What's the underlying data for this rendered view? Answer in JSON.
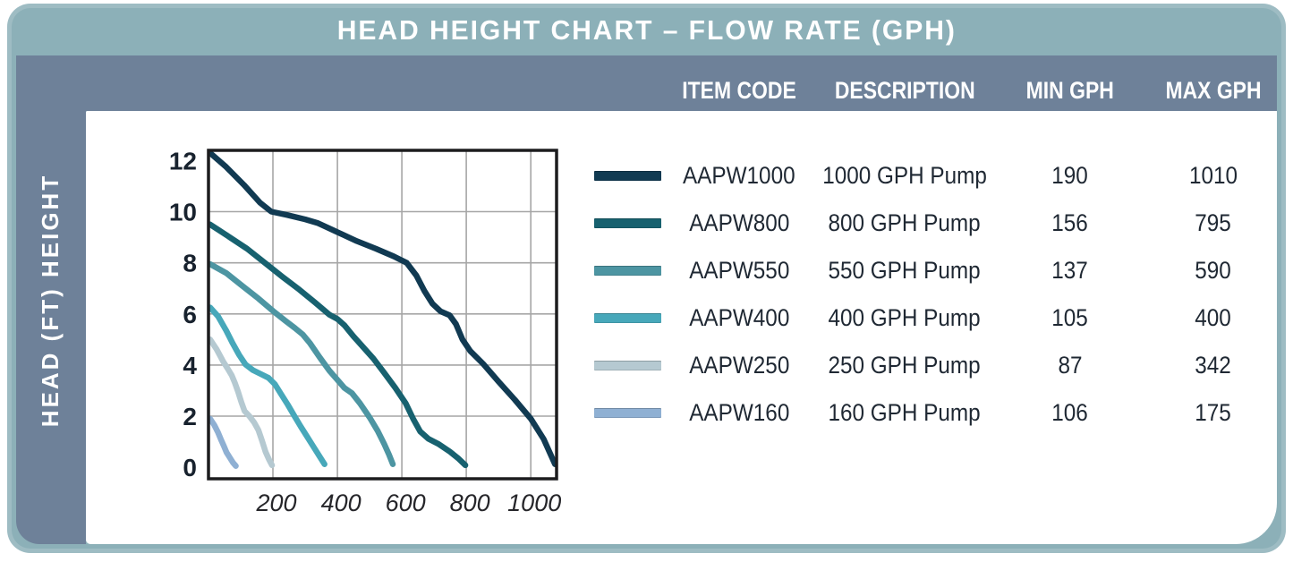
{
  "title": "HEAD HEIGHT CHART – FLOW RATE (GPH)",
  "y_axis_label": "HEAD (FT) HEIGHT",
  "colors": {
    "frame": "#8cb0b8",
    "band": "#6e8199",
    "panel": "#ffffff",
    "title_text": "#ffffff",
    "grid": "#a6a6a6",
    "plot_border": "#1c1c1e"
  },
  "table": {
    "headers": [
      "ITEM CODE",
      "DESCRIPTION",
      "MIN GPH",
      "MAX GPH"
    ],
    "rows": [
      {
        "item_code": "AAPW1000",
        "description": "1000 GPH Pump",
        "min_gph": "190",
        "max_gph": "1010",
        "color": "#113a52"
      },
      {
        "item_code": "AAPW800",
        "description": "800 GPH Pump",
        "min_gph": "156",
        "max_gph": "795",
        "color": "#17616f"
      },
      {
        "item_code": "AAPW550",
        "description": "550 GPH Pump",
        "min_gph": "137",
        "max_gph": "590",
        "color": "#4d95a2"
      },
      {
        "item_code": "AAPW400",
        "description": "400 GPH Pump",
        "min_gph": "105",
        "max_gph": "400",
        "color": "#47a8ba"
      },
      {
        "item_code": "AAPW250",
        "description": "250 GPH Pump",
        "min_gph": "87",
        "max_gph": "342",
        "color": "#b5c9d1"
      },
      {
        "item_code": "AAPW160",
        "description": "160 GPH Pump",
        "min_gph": "106",
        "max_gph": "175",
        "color": "#8fb0d3"
      }
    ]
  },
  "chart_data": {
    "type": "line",
    "title": "HEAD HEIGHT CHART – FLOW RATE (GPH)",
    "xlabel": "FLOW RATE (GPH)",
    "ylabel": "HEAD (FT) HEIGHT",
    "xlim": [
      0,
      1080
    ],
    "ylim": [
      0,
      12.4
    ],
    "x_ticks": [
      200,
      400,
      600,
      800,
      1000
    ],
    "y_ticks": [
      0,
      2,
      4,
      6,
      8,
      10,
      12
    ],
    "y_gridlines": [
      2,
      4,
      6,
      8,
      10
    ],
    "grid": true,
    "legend_position": "table-right",
    "point_units": [
      "GPH",
      "head_ft"
    ],
    "series": [
      {
        "name": "AAPW1000",
        "color": "#113a52",
        "points": [
          [
            5,
            12.3
          ],
          [
            55,
            11.75
          ],
          [
            110,
            11.05
          ],
          [
            160,
            10.35
          ],
          [
            195,
            10.0
          ],
          [
            245,
            9.87
          ],
          [
            300,
            9.7
          ],
          [
            340,
            9.55
          ],
          [
            400,
            9.2
          ],
          [
            460,
            8.85
          ],
          [
            520,
            8.55
          ],
          [
            575,
            8.25
          ],
          [
            615,
            8.0
          ],
          [
            645,
            7.5
          ],
          [
            670,
            6.9
          ],
          [
            695,
            6.4
          ],
          [
            720,
            6.1
          ],
          [
            748,
            5.95
          ],
          [
            768,
            5.6
          ],
          [
            788,
            5.0
          ],
          [
            812,
            4.55
          ],
          [
            852,
            4.05
          ],
          [
            900,
            3.35
          ],
          [
            950,
            2.65
          ],
          [
            1000,
            1.9
          ],
          [
            1040,
            1.1
          ],
          [
            1075,
            0.12
          ]
        ]
      },
      {
        "name": "AAPW800",
        "color": "#17616f",
        "points": [
          [
            5,
            9.5
          ],
          [
            60,
            9.05
          ],
          [
            120,
            8.55
          ],
          [
            175,
            8.0
          ],
          [
            230,
            7.45
          ],
          [
            282,
            6.95
          ],
          [
            330,
            6.45
          ],
          [
            375,
            5.97
          ],
          [
            400,
            5.8
          ],
          [
            422,
            5.55
          ],
          [
            450,
            5.12
          ],
          [
            480,
            4.7
          ],
          [
            512,
            4.25
          ],
          [
            545,
            3.7
          ],
          [
            580,
            3.1
          ],
          [
            612,
            2.5
          ],
          [
            635,
            1.9
          ],
          [
            657,
            1.4
          ],
          [
            682,
            1.12
          ],
          [
            715,
            0.9
          ],
          [
            748,
            0.62
          ],
          [
            775,
            0.35
          ],
          [
            797,
            0.08
          ]
        ]
      },
      {
        "name": "AAPW550",
        "color": "#4d95a2",
        "points": [
          [
            5,
            7.95
          ],
          [
            55,
            7.6
          ],
          [
            105,
            7.1
          ],
          [
            155,
            6.6
          ],
          [
            200,
            6.12
          ],
          [
            240,
            5.72
          ],
          [
            268,
            5.45
          ],
          [
            292,
            5.2
          ],
          [
            315,
            4.85
          ],
          [
            345,
            4.3
          ],
          [
            375,
            3.78
          ],
          [
            400,
            3.42
          ],
          [
            422,
            3.1
          ],
          [
            445,
            2.9
          ],
          [
            470,
            2.5
          ],
          [
            500,
            1.95
          ],
          [
            525,
            1.42
          ],
          [
            545,
            0.92
          ],
          [
            560,
            0.5
          ],
          [
            572,
            0.12
          ]
        ]
      },
      {
        "name": "AAPW400",
        "color": "#47a8ba",
        "points": [
          [
            5,
            6.25
          ],
          [
            30,
            5.9
          ],
          [
            55,
            5.35
          ],
          [
            75,
            4.85
          ],
          [
            95,
            4.4
          ],
          [
            115,
            4.02
          ],
          [
            138,
            3.8
          ],
          [
            162,
            3.65
          ],
          [
            186,
            3.5
          ],
          [
            206,
            3.25
          ],
          [
            226,
            2.85
          ],
          [
            246,
            2.45
          ],
          [
            266,
            2.02
          ],
          [
            286,
            1.6
          ],
          [
            306,
            1.2
          ],
          [
            326,
            0.8
          ],
          [
            345,
            0.42
          ],
          [
            360,
            0.12
          ]
        ]
      },
      {
        "name": "AAPW250",
        "color": "#b5c9d1",
        "points": [
          [
            5,
            5.0
          ],
          [
            25,
            4.62
          ],
          [
            45,
            4.15
          ],
          [
            60,
            3.85
          ],
          [
            72,
            3.6
          ],
          [
            82,
            3.3
          ],
          [
            92,
            2.95
          ],
          [
            102,
            2.55
          ],
          [
            112,
            2.2
          ],
          [
            127,
            2.0
          ],
          [
            142,
            1.75
          ],
          [
            155,
            1.45
          ],
          [
            167,
            1.0
          ],
          [
            177,
            0.6
          ],
          [
            188,
            0.3
          ],
          [
            197,
            0.08
          ]
        ]
      },
      {
        "name": "AAPW160",
        "color": "#8fb0d3",
        "points": [
          [
            5,
            1.9
          ],
          [
            18,
            1.65
          ],
          [
            30,
            1.35
          ],
          [
            40,
            1.05
          ],
          [
            48,
            0.82
          ],
          [
            56,
            0.58
          ],
          [
            66,
            0.38
          ],
          [
            76,
            0.18
          ],
          [
            85,
            0.05
          ]
        ]
      }
    ]
  }
}
